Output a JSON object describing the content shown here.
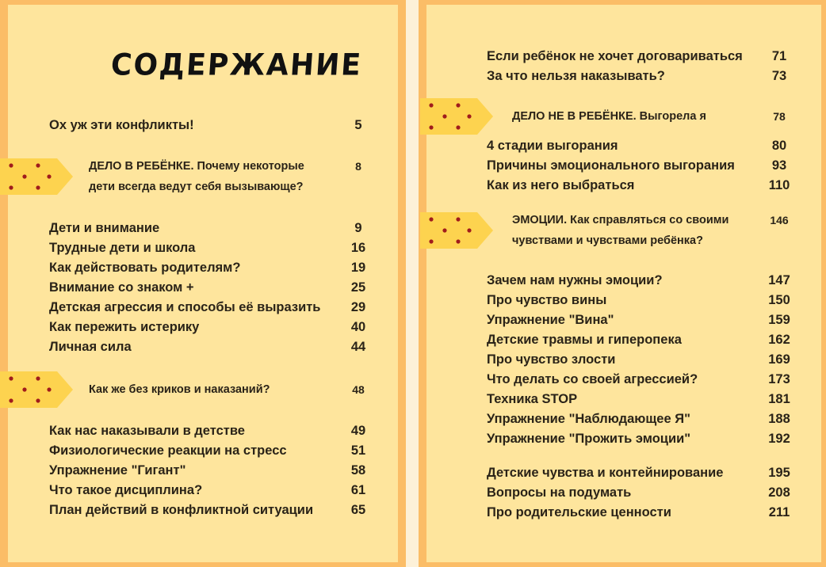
{
  "title": "СОДЕРЖАНИЕ",
  "colors": {
    "background": "#fbbd67",
    "page": "#fee59d",
    "marker": "#fdd34f",
    "marker_dots": "#a01c1c"
  },
  "left": {
    "items": [
      {
        "type": "entry",
        "label": "Ох уж эти конфликты!",
        "page": "5"
      },
      {
        "type": "section",
        "label": "ДЕЛО В РЕБЁНКЕ. Почему некоторые",
        "label2": "дети всегда ведут себя вызывающе?",
        "page": "8"
      },
      {
        "type": "entry",
        "label": "Дети и внимание",
        "page": "9"
      },
      {
        "type": "entry",
        "label": "Трудные дети и школа",
        "page": "16"
      },
      {
        "type": "entry",
        "label": "Как действовать родителям?",
        "page": "19"
      },
      {
        "type": "entry",
        "label": "Внимание со знаком +",
        "page": "25"
      },
      {
        "type": "entry",
        "label": "Детская агрессия и способы её выразить",
        "page": "29"
      },
      {
        "type": "entry",
        "label": "Как пережить истерику",
        "page": "40"
      },
      {
        "type": "entry",
        "label": "Личная сила",
        "page": "44"
      },
      {
        "type": "section",
        "label": "Как же без криков и наказаний?",
        "page": "48"
      },
      {
        "type": "entry",
        "label": "Как нас наказывали в детстве",
        "page": "49"
      },
      {
        "type": "entry",
        "label": "Физиологические реакции на стресс",
        "page": "51"
      },
      {
        "type": "entry",
        "label": "Упражнение \"Гигант\"",
        "page": "58"
      },
      {
        "type": "entry",
        "label": "Что такое дисциплина?",
        "page": "61"
      },
      {
        "type": "entry",
        "label": "План действий в конфликтной ситуации",
        "page": "65"
      }
    ]
  },
  "right": {
    "items": [
      {
        "type": "entry",
        "label": "Если ребёнок не хочет договариваться",
        "page": "71"
      },
      {
        "type": "entry",
        "label": "За что нельзя наказывать?",
        "page": "73"
      },
      {
        "type": "section",
        "label": "ДЕЛО НЕ В РЕБЁНКЕ. Выгорела я",
        "page": "78"
      },
      {
        "type": "entry",
        "label": "4 стадии выгорания",
        "page": "80"
      },
      {
        "type": "entry",
        "label": "Причины эмоционального выгорания",
        "page": "93"
      },
      {
        "type": "entry",
        "label": "Как из него выбраться",
        "page": "110"
      },
      {
        "type": "section",
        "label": "ЭМОЦИИ. Как справляться со своими",
        "label2": "чувствами и чувствами ребёнка?",
        "page": "146"
      },
      {
        "type": "entry",
        "label": "Зачем нам нужны эмоции?",
        "page": "147"
      },
      {
        "type": "entry",
        "label": "Про чувство вины",
        "page": "150"
      },
      {
        "type": "entry",
        "label": "Упражнение \"Вина\"",
        "page": "159"
      },
      {
        "type": "entry",
        "label": "Детские травмы и гиперопека",
        "page": "162"
      },
      {
        "type": "entry",
        "label": "Про чувство злости",
        "page": "169"
      },
      {
        "type": "entry",
        "label": "Что делать со своей агрессией?",
        "page": "173"
      },
      {
        "type": "entry",
        "label": "Техника STOP",
        "page": "181"
      },
      {
        "type": "entry",
        "label": "Упражнение  \"Наблюдающее Я\"",
        "page": "188"
      },
      {
        "type": "entry",
        "label": "Упражнение \"Прожить эмоции\"",
        "page": "192"
      },
      {
        "type": "entry",
        "label": "Детские чувства и контейнирование",
        "page": "195"
      },
      {
        "type": "entry",
        "label": "Вопросы на подумать",
        "page": "208"
      },
      {
        "type": "entry",
        "label": "Про родительские ценности",
        "page": "211"
      }
    ]
  }
}
